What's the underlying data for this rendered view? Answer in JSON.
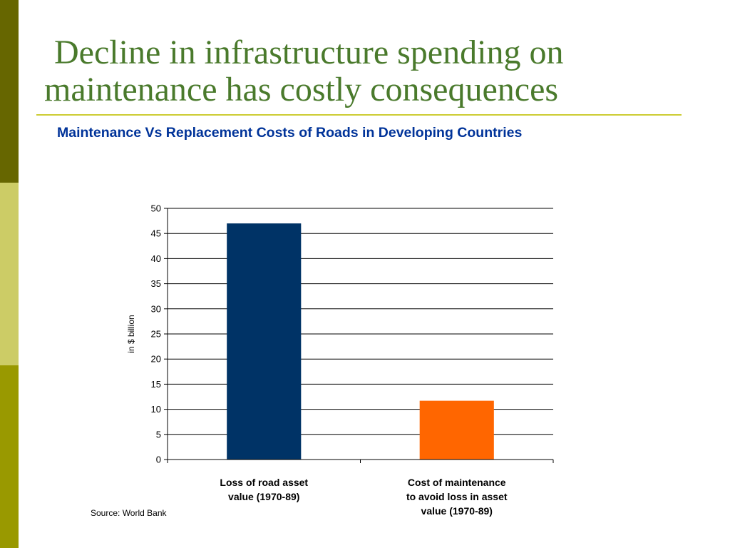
{
  "theme": {
    "stripe_top": "#666600",
    "stripe_mid": "#cccc66",
    "stripe_bot": "#999900",
    "title_color": "#4a7a2c",
    "rule_color": "#cccc33",
    "chart_title_color": "#003399",
    "gridline_color": "#000000"
  },
  "slide": {
    "title_line1": "Decline in infrastructure spending on",
    "title_line2": "maintenance has costly consequences",
    "chart_title": "Maintenance Vs Replacement Costs of Roads in Developing Countries",
    "source": "Source: World Bank"
  },
  "chart_data": {
    "type": "bar",
    "title": "Maintenance Vs Replacement Costs of Roads in Developing Countries",
    "categories": [
      [
        "Loss of road asset",
        "value (1970-89)"
      ],
      [
        "Cost of maintenance",
        "to avoid loss in asset",
        "value (1970-89)"
      ]
    ],
    "values": [
      47,
      11.7
    ],
    "bar_colors": [
      "#003366",
      "#ff6600"
    ],
    "xlabel": "",
    "ylabel": "in $ billion",
    "ylim": [
      0,
      50
    ],
    "yticks": [
      0,
      5,
      10,
      15,
      20,
      25,
      30,
      35,
      40,
      45,
      50
    ],
    "grid": true,
    "legend": "none"
  }
}
